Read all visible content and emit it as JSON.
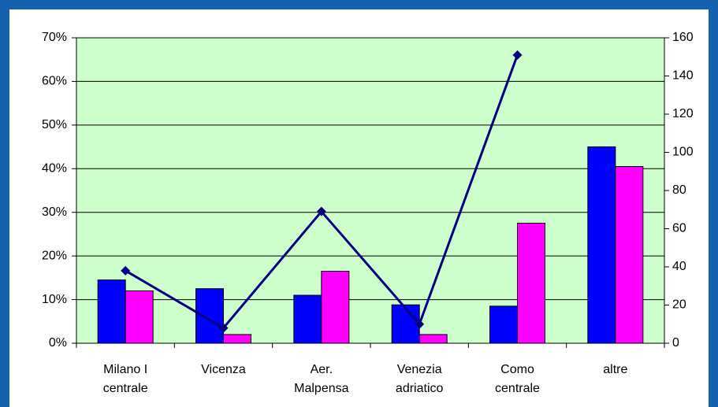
{
  "chart_data": {
    "type": "bar_line",
    "categories": [
      "Milano I\ncentrale",
      "Vicenza",
      "Aer.\nMalpensa",
      "Venezia\nadriatico",
      "Como\ncentrale",
      "altre"
    ],
    "series": [
      {
        "color": "#0000ff",
        "values": [
          14.5,
          12.5,
          11,
          8.8,
          8.5,
          45
        ]
      },
      {
        "color": "#ff00ff",
        "values": [
          12,
          2,
          16.5,
          2,
          27.5,
          40.5
        ]
      },
      {
        "color": "#000080",
        "axis": "y2",
        "values": [
          38,
          8,
          69,
          10,
          151,
          null
        ]
      }
    ],
    "ylim": [
      0,
      70
    ],
    "yticks": [
      {
        "value": 0,
        "label": "0%"
      },
      {
        "value": 10,
        "label": "10%"
      },
      {
        "value": 20,
        "label": "20%"
      },
      {
        "value": 30,
        "label": "30%"
      },
      {
        "value": 40,
        "label": "40%"
      },
      {
        "value": 50,
        "label": "50%"
      },
      {
        "value": 60,
        "label": "60%"
      },
      {
        "value": 70,
        "label": "70%"
      }
    ],
    "y2lim": [
      0,
      160
    ],
    "y2ticks": [
      0,
      20,
      40,
      60,
      80,
      100,
      120,
      140,
      160
    ],
    "grid": true,
    "plot_color": "#ccffcc"
  }
}
